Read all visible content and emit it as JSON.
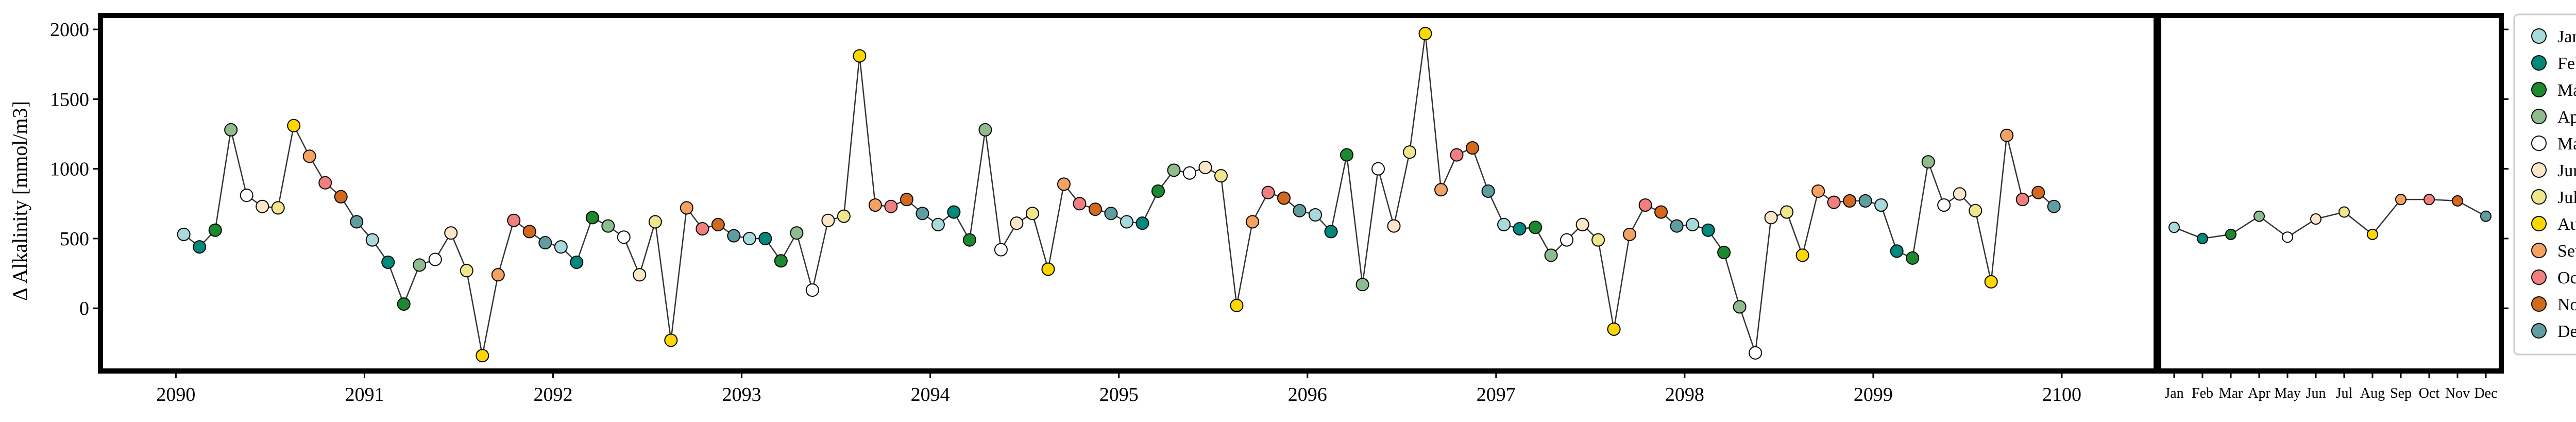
{
  "chart_data": [
    {
      "type": "line",
      "title": "",
      "ylabel": "Δ Alkalinity [mmol/m3]",
      "xlabel": "",
      "xlim": [
        2089.6,
        2100.5
      ],
      "ylim": [
        -450,
        2100
      ],
      "xticks": [
        2090,
        2091,
        2092,
        2093,
        2094,
        2095,
        2096,
        2097,
        2098,
        2099,
        2100
      ],
      "xtick_labels": [
        "2090",
        "2091",
        "2092",
        "2093",
        "2094",
        "2095",
        "2096",
        "2097",
        "2098",
        "2099",
        "2100"
      ],
      "yticks": [
        0,
        500,
        1000,
        1500,
        2000
      ],
      "ytick_labels": [
        "0",
        "500",
        "1000",
        "1500",
        "2000"
      ],
      "grid": false,
      "marker_colored_by": "month",
      "series": [
        {
          "start_year": 2090,
          "values": [
            530,
            440,
            560,
            1280,
            810,
            730,
            720,
            1310,
            1090,
            900,
            800,
            620,
            490,
            330,
            30,
            310,
            350,
            540,
            270,
            -340,
            240,
            630,
            550,
            470,
            440,
            330,
            650,
            590,
            510,
            240,
            620,
            -230,
            720,
            570,
            600,
            520,
            500,
            500,
            340,
            540,
            130,
            630,
            660,
            1810,
            740,
            730,
            780,
            680,
            600,
            690,
            490,
            1280,
            420,
            610,
            680,
            280,
            890,
            750,
            710,
            680,
            620,
            610,
            840,
            990,
            970,
            1010,
            950,
            20,
            620,
            830,
            790,
            700,
            670,
            550,
            1100,
            170,
            1000,
            590,
            1120,
            1970,
            850,
            1100,
            1150,
            840,
            600,
            570,
            580,
            380,
            490,
            600,
            490,
            -150,
            530,
            740,
            690,
            590,
            600,
            560,
            400,
            10,
            -320,
            650,
            690,
            380,
            840,
            760,
            770,
            770,
            740,
            410,
            360,
            1050,
            740,
            820,
            700,
            190,
            1240,
            780,
            830,
            730
          ]
        }
      ]
    },
    {
      "type": "line",
      "title": "",
      "categories": [
        "Jan",
        "Feb",
        "Mar",
        "Apr",
        "May",
        "Jun",
        "Jul",
        "Aug",
        "Sep",
        "Oct",
        "Nov",
        "Dec"
      ],
      "xtick_labels": [
        "Jan",
        "Feb",
        "Mar",
        "Apr",
        "May",
        "Jun",
        "Jul",
        "Aug",
        "Sep",
        "Oct",
        "Nov",
        "Dec"
      ],
      "values": [
        580,
        500,
        530,
        660,
        510,
        640,
        690,
        530,
        780,
        780,
        770,
        660
      ],
      "ylim": [
        -450,
        2100
      ],
      "grid": false
    }
  ],
  "legend": {
    "placement": "right",
    "items": [
      {
        "label": "Jan",
        "color": "#a8dadc"
      },
      {
        "label": "Feb",
        "color": "#00897b"
      },
      {
        "label": "Mar",
        "color": "#1b8a2e"
      },
      {
        "label": "Apr",
        "color": "#8fbc8f"
      },
      {
        "label": "May",
        "color": "#ffffff"
      },
      {
        "label": "June",
        "color": "#fde7c8"
      },
      {
        "label": "July",
        "color": "#f0e68c"
      },
      {
        "label": "Aug",
        "color": "#ffd700"
      },
      {
        "label": "Sept",
        "color": "#f4a261"
      },
      {
        "label": "Oct",
        "color": "#f08080"
      },
      {
        "label": "Nov",
        "color": "#d2691e"
      },
      {
        "label": "Dec",
        "color": "#5f9ea0"
      }
    ]
  }
}
